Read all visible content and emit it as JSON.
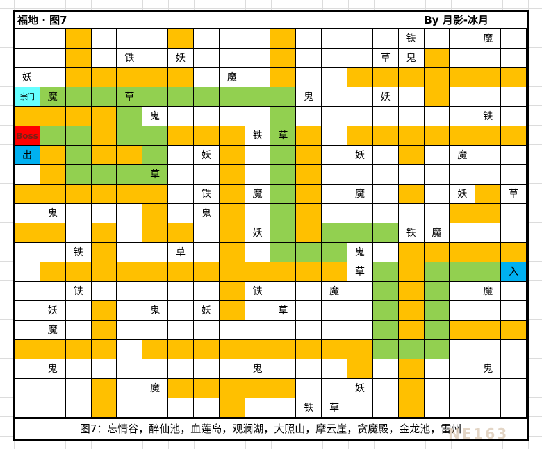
{
  "header": {
    "title": "福地 · 图7",
    "credit": "By 月影-冰月"
  },
  "footer": {
    "caption": "图7：忘情谷，醉仙池，血莲岛，观澜湖，大照山，摩云崖，贪魔殿，金龙池，雷州"
  },
  "watermark": "NE163",
  "grid": {
    "rows": 20,
    "cols": 20,
    "palette": {
      "w": "#FFFFFF",
      "o": "#FFC000",
      "g": "#92D050",
      "r": "#FF0000",
      "b": "#00B0F0",
      "c": "#66FFFF"
    },
    "boss_text_color": "#7B2015",
    "cells": [
      [
        "w",
        "w",
        "o",
        "w",
        "w",
        "w",
        "o",
        "w",
        "w",
        "w",
        "o",
        "w",
        "w",
        "w",
        "w",
        "w|铁",
        "w",
        "w",
        "w|魔",
        "w"
      ],
      [
        "w",
        "w",
        "o",
        "w",
        "w|铁",
        "w",
        "w|妖",
        "w",
        "w",
        "w",
        "o",
        "w",
        "w",
        "w",
        "w|草",
        "w|鬼",
        "o",
        "w",
        "w",
        "w"
      ],
      [
        "w|妖",
        "w",
        "o",
        "o",
        "o",
        "o",
        "o",
        "w",
        "w|魔",
        "w",
        "o",
        "w",
        "w",
        "o",
        "o",
        "o",
        "o",
        "o",
        "o",
        "o"
      ],
      [
        "c|宗门",
        "g|魔",
        "g",
        "g",
        "g|草",
        "g",
        "g",
        "g",
        "g",
        "g",
        "g",
        "w|鬼",
        "w",
        "w",
        "w|妖",
        "w",
        "o",
        "w",
        "w",
        "w"
      ],
      [
        "o",
        "o",
        "o",
        "o",
        "g",
        "w|鬼",
        "w",
        "w",
        "w",
        "w",
        "g",
        "w",
        "w",
        "w",
        "w",
        "w",
        "w",
        "w",
        "w|铁",
        "w"
      ],
      [
        "r|Boss",
        "g",
        "g",
        "o",
        "g",
        "g",
        "o",
        "o",
        "o",
        "w|铁",
        "g|草",
        "o",
        "w",
        "o",
        "o",
        "o",
        "o",
        "o",
        "o",
        "o"
      ],
      [
        "b|出",
        "o",
        "g",
        "o",
        "o",
        "g",
        "w",
        "w|妖",
        "o",
        "w",
        "g",
        "o",
        "w",
        "w|妖",
        "w",
        "o",
        "w",
        "w|魔",
        "w",
        "w"
      ],
      [
        "w",
        "o",
        "g",
        "g",
        "g",
        "g|草",
        "w",
        "w",
        "o",
        "w",
        "g",
        "o",
        "w",
        "w",
        "w",
        "w",
        "w",
        "w",
        "w",
        "w"
      ],
      [
        "o",
        "o",
        "o",
        "o",
        "o",
        "o",
        "w",
        "w|铁",
        "o",
        "w|魔",
        "g",
        "o",
        "w",
        "w|魔",
        "w",
        "o",
        "w",
        "w|妖",
        "o",
        "w|草"
      ],
      [
        "w",
        "w|鬼",
        "w",
        "w",
        "w",
        "o",
        "w",
        "w|鬼",
        "o",
        "w",
        "g",
        "o",
        "w",
        "w",
        "w",
        "w",
        "w",
        "o",
        "o",
        "w"
      ],
      [
        "o",
        "o",
        "w",
        "o",
        "w",
        "o",
        "o",
        "w",
        "o",
        "w|妖",
        "g",
        "o",
        "g",
        "g",
        "g",
        "w|铁",
        "w|魔",
        "w",
        "w",
        "w"
      ],
      [
        "w",
        "w",
        "w|铁",
        "o",
        "w",
        "w",
        "w|草",
        "w",
        "o",
        "w",
        "g",
        "g",
        "g",
        "w|鬼",
        "w",
        "o",
        "o",
        "o",
        "o",
        "o"
      ],
      [
        "w",
        "o",
        "o",
        "o",
        "o",
        "o",
        "o",
        "o",
        "o",
        "o",
        "o",
        "o",
        "o",
        "w|草",
        "g",
        "o",
        "g",
        "g",
        "g",
        "b|入"
      ],
      [
        "w",
        "w",
        "w|铁",
        "w",
        "w",
        "w",
        "w",
        "w",
        "o",
        "w|铁",
        "w",
        "w",
        "w|魔",
        "w",
        "g",
        "o",
        "g",
        "w",
        "w|魔",
        "w"
      ],
      [
        "w",
        "w|妖",
        "w",
        "o",
        "w",
        "w|鬼",
        "w",
        "w|妖",
        "o",
        "w",
        "w|草",
        "w",
        "w",
        "w",
        "g",
        "o",
        "g",
        "w",
        "w",
        "w"
      ],
      [
        "w",
        "w|魔",
        "w",
        "o",
        "w",
        "w",
        "w",
        "w",
        "w",
        "w",
        "w",
        "w",
        "w",
        "w",
        "g",
        "o",
        "g",
        "o",
        "o",
        "o"
      ],
      [
        "o",
        "o",
        "o",
        "o",
        "w",
        "o",
        "o",
        "o",
        "o",
        "o",
        "o",
        "o",
        "o",
        "o",
        "g",
        "g",
        "g",
        "w",
        "w",
        "w"
      ],
      [
        "w",
        "w|鬼",
        "w",
        "w",
        "w",
        "w",
        "w",
        "w",
        "w",
        "w|鬼",
        "w",
        "w",
        "w",
        "o",
        "w",
        "o",
        "w",
        "w",
        "w|鬼",
        "w"
      ],
      [
        "w",
        "w",
        "w",
        "o",
        "w",
        "w|魔",
        "o",
        "o",
        "o",
        "o",
        "o",
        "w",
        "w",
        "w|妖",
        "w",
        "o",
        "w",
        "w",
        "w",
        "w"
      ],
      [
        "w",
        "w",
        "w",
        "o",
        "w",
        "w",
        "w",
        "w",
        "o",
        "w",
        "w",
        "w|铁",
        "w|草",
        "w",
        "w",
        "o",
        "w",
        "w",
        "w",
        "w"
      ]
    ]
  }
}
